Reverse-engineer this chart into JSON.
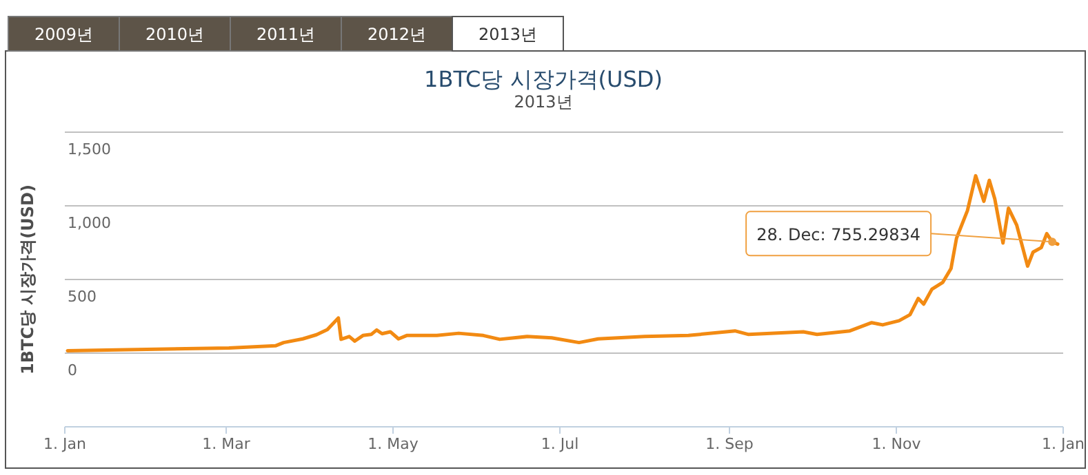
{
  "chart_data": {
    "type": "line",
    "title": "1BTC당 시장가격(USD)",
    "subtitle": "2013년",
    "ylabel": "1BTC당 시장가격(USD)",
    "x": [
      "2013-01-02",
      "2013-03-02",
      "2013-03-19",
      "2013-03-22",
      "2013-03-29",
      "2013-04-03",
      "2013-04-07",
      "2013-04-11",
      "2013-04-12",
      "2013-04-15",
      "2013-04-17",
      "2013-04-20",
      "2013-04-23",
      "2013-04-25",
      "2013-04-27",
      "2013-04-30",
      "2013-05-03",
      "2013-05-06",
      "2013-05-17",
      "2013-05-25",
      "2013-06-03",
      "2013-06-09",
      "2013-06-19",
      "2013-06-28",
      "2013-07-08",
      "2013-07-15",
      "2013-08-01",
      "2013-08-17",
      "2013-09-03",
      "2013-09-08",
      "2013-09-28",
      "2013-10-03",
      "2013-10-15",
      "2013-10-23",
      "2013-10-27",
      "2013-11-02",
      "2013-11-06",
      "2013-11-09",
      "2013-11-11",
      "2013-11-14",
      "2013-11-18",
      "2013-11-21",
      "2013-11-23",
      "2013-11-27",
      "2013-11-30",
      "2013-12-03",
      "2013-12-05",
      "2013-12-07",
      "2013-12-10",
      "2013-12-12",
      "2013-12-15",
      "2013-12-19",
      "2013-12-21",
      "2013-12-24",
      "2013-12-26",
      "2013-12-28",
      "2013-12-30"
    ],
    "series": [
      {
        "color": "#f28a12",
        "values": [
          16,
          35,
          50,
          72,
          97,
          125,
          160,
          239,
          94,
          113,
          82,
          120,
          127,
          157,
          132,
          145,
          97,
          120,
          120,
          135,
          120,
          94,
          113,
          104,
          72,
          97,
          113,
          120,
          151,
          127,
          145,
          127,
          151,
          207,
          192,
          220,
          261,
          371,
          333,
          434,
          481,
          575,
          780,
          968,
          1204,
          1031,
          1173,
          1047,
          748,
          984,
          870,
          591,
          686,
          717,
          811,
          755.29834,
          740
        ]
      }
    ],
    "xlim": [
      "2013-01-01",
      "2014-01-01"
    ],
    "xticks": [
      {
        "value": "2013-01-01",
        "label": "1. Jan"
      },
      {
        "value": "2013-03-01",
        "label": "1. Mar"
      },
      {
        "value": "2013-05-01",
        "label": "1. May"
      },
      {
        "value": "2013-07-01",
        "label": "1. Jul"
      },
      {
        "value": "2013-09-01",
        "label": "1. Sep"
      },
      {
        "value": "2013-11-01",
        "label": "1. Nov"
      },
      {
        "value": "2014-01-01",
        "label": "1. Jan"
      }
    ],
    "ylim": [
      -500,
      1500
    ],
    "yticks": [
      0,
      500,
      {
        "value": 1000,
        "label": "1,000"
      },
      {
        "value": 1500,
        "label": "1,500"
      }
    ],
    "grid": "y",
    "marker": "none",
    "line_style": "solid",
    "annotations": [
      "2009년",
      "2010년",
      "2011년",
      "2012년",
      "2013년",
      {
        "text": "28. Dec: 755.29834",
        "x": "2013-12-28",
        "y": 755.29834
      }
    ]
  }
}
